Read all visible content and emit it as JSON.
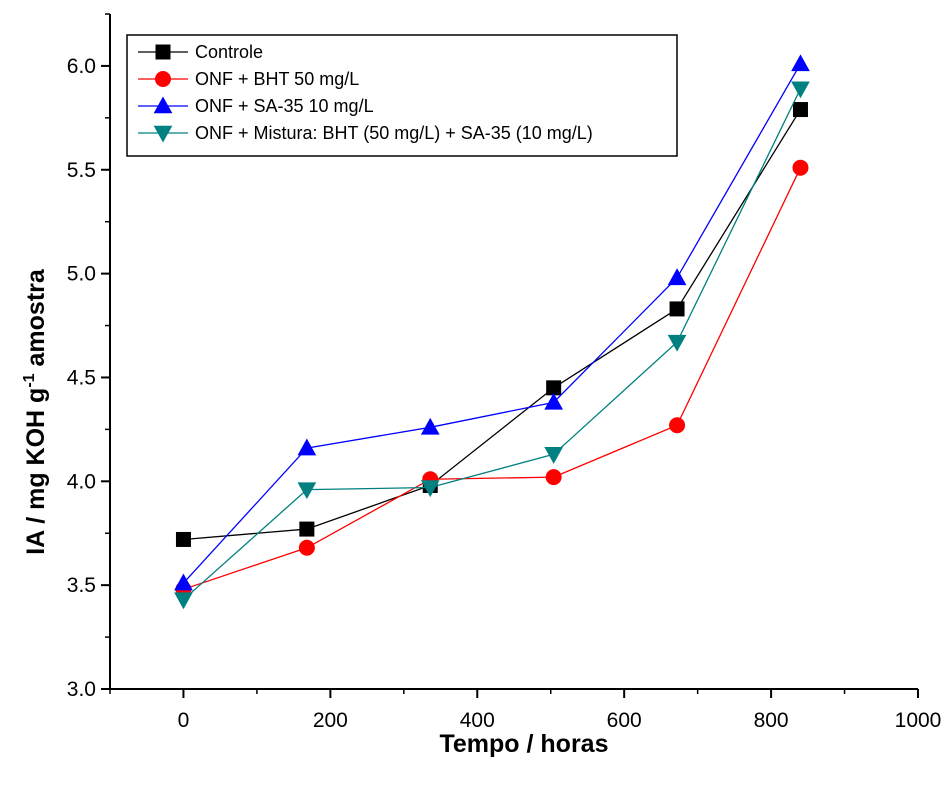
{
  "chart_data": {
    "type": "line",
    "title": "",
    "xlabel": "Tempo / horas",
    "ylabel_main": "IA / mg KOH g",
    "ylabel_sup": "-1",
    "ylabel_tail": " amostra",
    "xlim": [
      -100,
      1000
    ],
    "ylim": [
      3.0,
      6.25
    ],
    "x_ticks": [
      0,
      200,
      400,
      600,
      800,
      1000
    ],
    "y_ticks": [
      3.0,
      3.5,
      4.0,
      4.5,
      5.0,
      5.5,
      6.0
    ],
    "y_tick_labels": [
      "3.0",
      "3.5",
      "4.0",
      "4.5",
      "5.0",
      "5.5",
      "6.0"
    ],
    "grid": false,
    "legend_position": "top-left",
    "x": [
      0,
      168,
      336,
      504,
      672,
      840
    ],
    "series": [
      {
        "name": "Controle",
        "color": "#000000",
        "marker": "square",
        "values": [
          3.72,
          3.77,
          3.98,
          4.45,
          4.83,
          5.79
        ]
      },
      {
        "name": "ONF + BHT 50 mg/L",
        "color": "#ff0000",
        "marker": "circle",
        "values": [
          3.48,
          3.68,
          4.01,
          4.02,
          4.27,
          5.51
        ]
      },
      {
        "name": "ONF + SA-35 10 mg/L",
        "color": "#0000ff",
        "marker": "triangle-up",
        "values": [
          3.51,
          4.16,
          4.26,
          4.38,
          4.98,
          6.01
        ]
      },
      {
        "name": "ONF + Mistura: BHT (50 mg/L) + SA-35 (10 mg/L)",
        "color": "#008080",
        "marker": "triangle-down",
        "values": [
          3.43,
          3.96,
          3.97,
          4.13,
          4.67,
          5.89
        ]
      }
    ]
  }
}
